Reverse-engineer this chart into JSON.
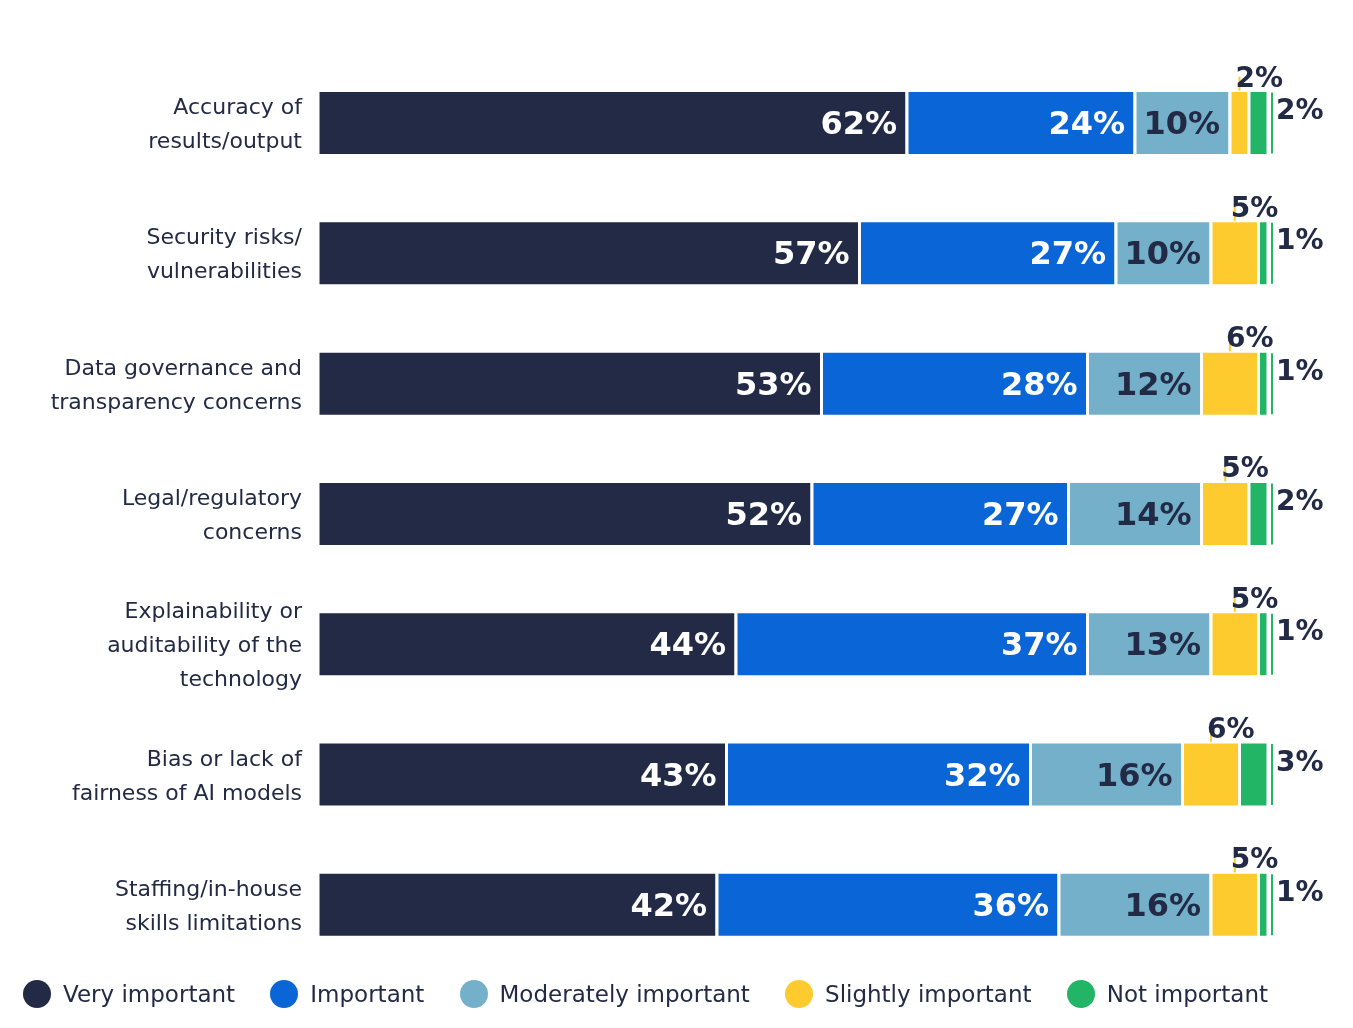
{
  "chart_data": {
    "type": "bar",
    "orientation": "horizontal",
    "stacked": true,
    "legend": "bottom",
    "grid": false,
    "categories": [
      "Accuracy of results/output",
      "Security risks/ vulnerabilities",
      "Data governance and transparency concerns",
      "Legal/regulatory concerns",
      "Explainability or auditability of the technology",
      "Bias or lack of fairness of AI models",
      "Staffing/in-house skills limitations"
    ],
    "series": [
      {
        "name": "Very important",
        "color": "#222a45",
        "values": [
          62,
          57,
          53,
          52,
          44,
          43,
          42
        ],
        "value_labels": [
          "62%",
          "57%",
          "53%",
          "52%",
          "44%",
          "43%",
          "42%"
        ]
      },
      {
        "name": "Important",
        "color": "#0a66d6",
        "values": [
          24,
          27,
          28,
          27,
          37,
          32,
          36
        ],
        "value_labels": [
          "24%",
          "27%",
          "28%",
          "27%",
          "37%",
          "32%",
          "36%"
        ]
      },
      {
        "name": "Moderately important",
        "color": "#74b0c9",
        "values": [
          10,
          10,
          12,
          14,
          13,
          16,
          16
        ],
        "value_labels": [
          "10%",
          "10%",
          "12%",
          "14%",
          "13%",
          "16%",
          "16%"
        ]
      },
      {
        "name": "Slightly important",
        "color": "#fdcb2e",
        "values": [
          2,
          5,
          6,
          5,
          5,
          6,
          5
        ],
        "value_labels": [
          "2%",
          "5%",
          "6%",
          "5%",
          "5%",
          "6%",
          "5%"
        ]
      },
      {
        "name": "Not important",
        "color": "#22b566",
        "values": [
          2,
          1,
          1,
          2,
          1,
          3,
          1
        ],
        "value_labels": [
          "2%",
          "1%",
          "1%",
          "2%",
          "1%",
          "3%",
          "1%"
        ]
      }
    ]
  }
}
